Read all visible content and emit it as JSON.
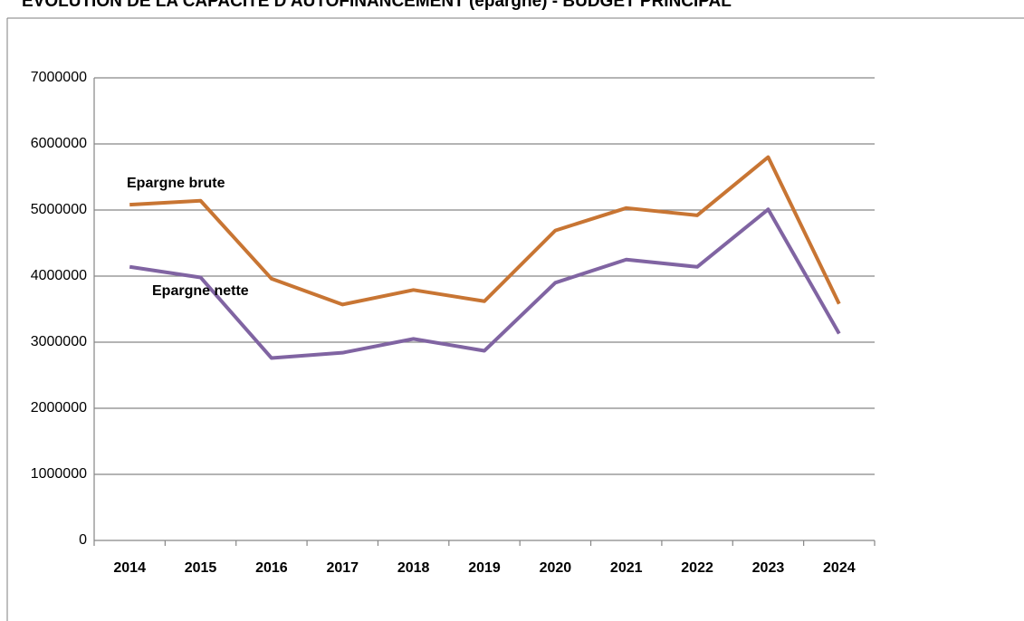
{
  "chart_data": {
    "type": "line",
    "title": "EVOLUTION DE LA CAPACITE D'AUTOFINANCEMENT (épargne) - BUDGET PRINCIPAL",
    "categories": [
      "2014",
      "2015",
      "2016",
      "2017",
      "2018",
      "2019",
      "2020",
      "2021",
      "2022",
      "2023",
      "2024"
    ],
    "series": [
      {
        "name": "Epargne brute",
        "color": "#c87533",
        "values": [
          5080000,
          5140000,
          3960000,
          3570000,
          3790000,
          3620000,
          4690000,
          5030000,
          4920000,
          5800000,
          3580000
        ]
      },
      {
        "name": "Epargne nette",
        "color": "#8064a2",
        "values": [
          4140000,
          3980000,
          2760000,
          2840000,
          3050000,
          2870000,
          3900000,
          4250000,
          4140000,
          5010000,
          3130000
        ]
      }
    ],
    "ylim": [
      0,
      7000000
    ],
    "yticks": [
      0,
      1000000,
      2000000,
      3000000,
      4000000,
      5000000,
      6000000,
      7000000
    ],
    "grid": true
  }
}
